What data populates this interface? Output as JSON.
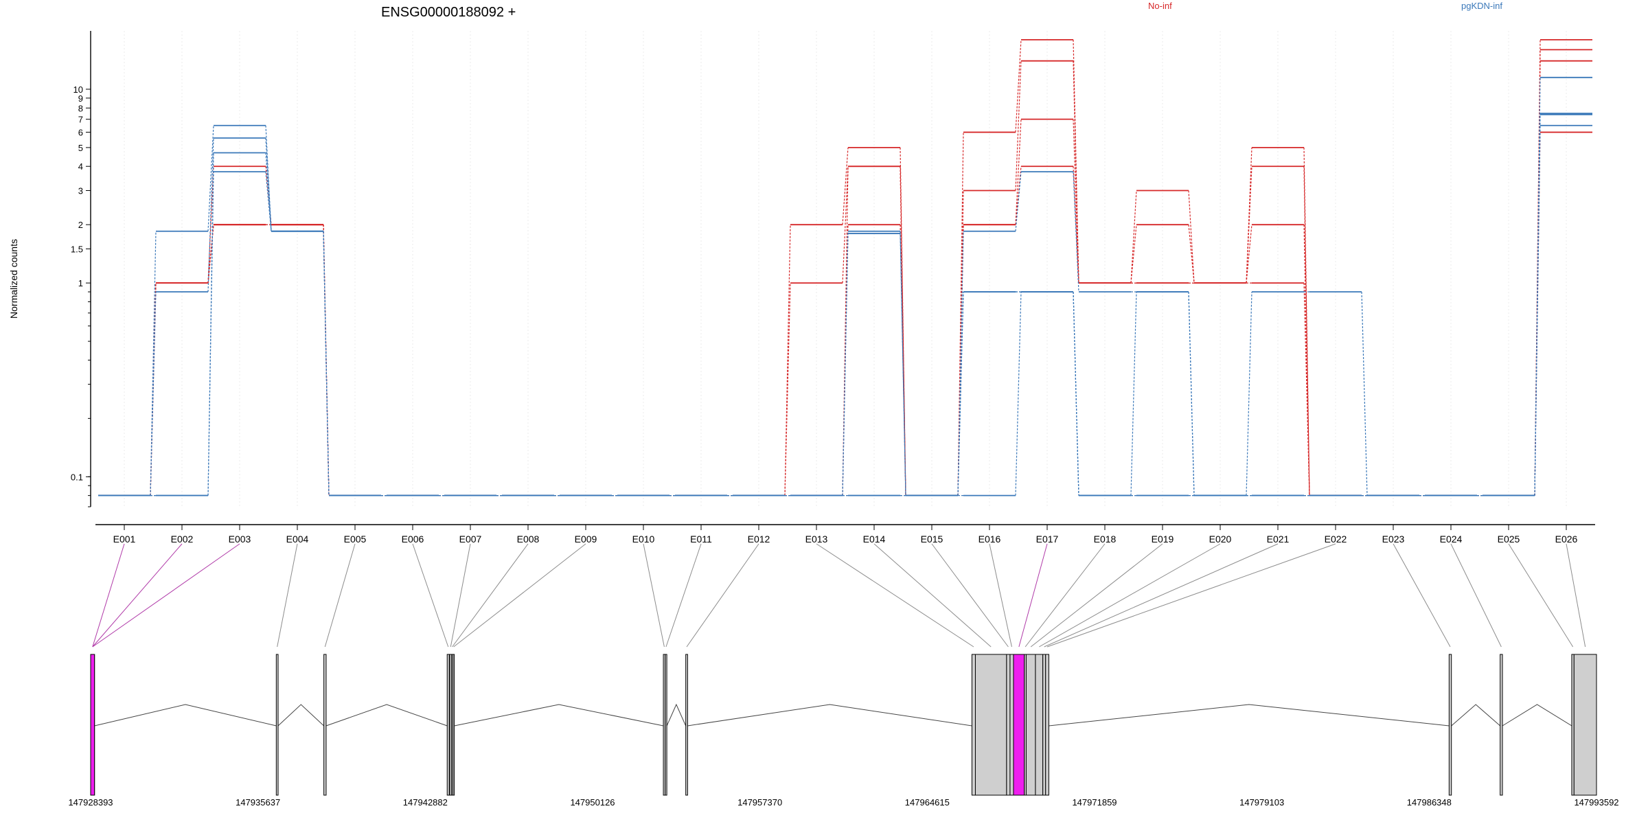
{
  "chart_data": {
    "type": "line",
    "title": "ENSG00000188092 +",
    "ylabel": "Normalized counts",
    "yscale": "log",
    "ylim": [
      0.07,
      20
    ],
    "grid": "vertical-dotted",
    "legend_placement": "top-right",
    "legend": [
      {
        "label": "No-inf",
        "color": "#d62728"
      },
      {
        "label": "pgKDN-inf",
        "color": "#3a78b9"
      }
    ],
    "y_ticks": [
      {
        "value": 0.1,
        "label": "0.1"
      },
      {
        "value": 1,
        "label": "1"
      },
      {
        "value": 1.5,
        "label": "1.5"
      },
      {
        "value": 2,
        "label": "2"
      },
      {
        "value": 3,
        "label": "3"
      },
      {
        "value": 4,
        "label": "4"
      },
      {
        "value": 5,
        "label": "5"
      },
      {
        "value": 6,
        "label": "6"
      },
      {
        "value": 7,
        "label": "7"
      },
      {
        "value": 8,
        "label": "8"
      },
      {
        "value": 9,
        "label": "9"
      },
      {
        "value": 10,
        "label": "10"
      }
    ],
    "categories": [
      "E001",
      "E002",
      "E003",
      "E004",
      "E005",
      "E006",
      "E007",
      "E008",
      "E009",
      "E010",
      "E011",
      "E012",
      "E013",
      "E014",
      "E015",
      "E016",
      "E017",
      "E018",
      "E019",
      "E020",
      "E021",
      "E022",
      "E023",
      "E024",
      "E025",
      "E026"
    ],
    "series": [
      {
        "group": "No-inf",
        "color": "#d62728",
        "values": [
          0.08,
          1,
          2,
          2,
          0.08,
          0.08,
          0.08,
          0.08,
          0.08,
          0.08,
          0.08,
          0.08,
          2,
          5,
          0.08,
          6,
          18,
          1,
          3,
          1,
          5,
          0.08,
          0.08,
          0.08,
          0.08,
          18
        ]
      },
      {
        "group": "No-inf",
        "color": "#d62728",
        "values": [
          0.08,
          1,
          4,
          2,
          0.08,
          0.08,
          0.08,
          0.08,
          0.08,
          0.08,
          0.08,
          0.08,
          1,
          4,
          0.08,
          3,
          14,
          1,
          2,
          1,
          4,
          0.08,
          0.08,
          0.08,
          0.08,
          14
        ]
      },
      {
        "group": "No-inf",
        "color": "#d62728",
        "values": [
          0.08,
          1,
          2,
          2,
          0.08,
          0.08,
          0.08,
          0.08,
          0.08,
          0.08,
          0.08,
          0.08,
          0.08,
          2,
          0.08,
          2,
          7,
          1,
          1,
          1,
          2,
          0.08,
          0.08,
          0.08,
          0.08,
          16
        ]
      },
      {
        "group": "No-inf",
        "color": "#d62728",
        "values": [
          0.08,
          1,
          2,
          2,
          0.08,
          0.08,
          0.08,
          0.08,
          0.08,
          0.08,
          0.08,
          0.08,
          0.08,
          4,
          0.08,
          2,
          4,
          1,
          1,
          1,
          1,
          0.08,
          0.08,
          0.08,
          0.08,
          6
        ]
      },
      {
        "group": "pgKDN-inf",
        "color": "#3a78b9",
        "values": [
          0.08,
          1.85,
          6.5,
          1.85,
          0.08,
          0.08,
          0.08,
          0.08,
          0.08,
          0.08,
          0.08,
          0.08,
          0.08,
          1.85,
          0.08,
          1.85,
          3.75,
          0.9,
          0.9,
          0.08,
          0.9,
          0.9,
          0.08,
          0.08,
          0.08,
          11.5
        ]
      },
      {
        "group": "pgKDN-inf",
        "color": "#3a78b9",
        "values": [
          0.08,
          0.9,
          5.6,
          1.85,
          0.08,
          0.08,
          0.08,
          0.08,
          0.08,
          0.08,
          0.08,
          0.08,
          0.08,
          1.8,
          0.08,
          0.9,
          0.9,
          0.08,
          0.9,
          0.08,
          0.08,
          0.08,
          0.08,
          0.08,
          0.08,
          7.5
        ]
      },
      {
        "group": "pgKDN-inf",
        "color": "#3a78b9",
        "values": [
          0.08,
          0.08,
          4.7,
          1.85,
          0.08,
          0.08,
          0.08,
          0.08,
          0.08,
          0.08,
          0.08,
          0.08,
          0.08,
          0.08,
          0.08,
          0.9,
          0.9,
          0.08,
          0.08,
          0.08,
          0.08,
          0.08,
          0.08,
          0.08,
          0.08,
          7.4
        ]
      },
      {
        "group": "pgKDN-inf",
        "color": "#3a78b9",
        "values": [
          0.08,
          0.08,
          3.75,
          1.85,
          0.08,
          0.08,
          0.08,
          0.08,
          0.08,
          0.08,
          0.08,
          0.08,
          0.08,
          0.08,
          0.08,
          0.08,
          0.9,
          0.08,
          0.08,
          0.08,
          0.08,
          0.08,
          0.08,
          0.08,
          0.08,
          6.5
        ]
      }
    ],
    "genomic_axis": {
      "ticks": [
        "147928393",
        "147935637",
        "147942882",
        "147950126",
        "147957370",
        "147964615",
        "147971859",
        "147979103",
        "147986348",
        "147993592"
      ],
      "range": [
        147928393,
        147993592
      ],
      "exons": [
        {
          "id": "E001",
          "start": 147928393,
          "end": 147928560,
          "highlight": true
        },
        {
          "id": "E002",
          "start": 147928393,
          "end": 147928560,
          "highlight": true
        },
        {
          "id": "E003",
          "start": 147928393,
          "end": 147928560,
          "highlight": true
        },
        {
          "id": "E004",
          "start": 147936430,
          "end": 147936510,
          "highlight": false
        },
        {
          "id": "E005",
          "start": 147938490,
          "end": 147938590,
          "highlight": false
        },
        {
          "id": "E006",
          "start": 147943830,
          "end": 147943920,
          "highlight": false
        },
        {
          "id": "E007",
          "start": 147943940,
          "end": 147944020,
          "highlight": false
        },
        {
          "id": "E008",
          "start": 147944020,
          "end": 147944080,
          "highlight": false
        },
        {
          "id": "E009",
          "start": 147944080,
          "end": 147944130,
          "highlight": false
        },
        {
          "id": "E010",
          "start": 147953190,
          "end": 147953270,
          "highlight": false
        },
        {
          "id": "E011",
          "start": 147953270,
          "end": 147953340,
          "highlight": false
        },
        {
          "id": "E012",
          "start": 147954160,
          "end": 147954240,
          "highlight": false
        },
        {
          "id": "E013",
          "start": 147966550,
          "end": 147966700,
          "highlight": false
        },
        {
          "id": "E014",
          "start": 147966700,
          "end": 147968050,
          "highlight": false
        },
        {
          "id": "E015",
          "start": 147968050,
          "end": 147968200,
          "highlight": false
        },
        {
          "id": "E016",
          "start": 147968200,
          "end": 147968350,
          "highlight": false
        },
        {
          "id": "E017",
          "start": 147968350,
          "end": 147968820,
          "highlight": true
        },
        {
          "id": "E018",
          "start": 147968820,
          "end": 147968900,
          "highlight": false
        },
        {
          "id": "E019",
          "start": 147968900,
          "end": 147969300,
          "highlight": false
        },
        {
          "id": "E020",
          "start": 147969300,
          "end": 147969620,
          "highlight": false
        },
        {
          "id": "E021",
          "start": 147969620,
          "end": 147969740,
          "highlight": false
        },
        {
          "id": "E022",
          "start": 147969740,
          "end": 147969880,
          "highlight": false
        },
        {
          "id": "E023",
          "start": 147987210,
          "end": 147987310,
          "highlight": false
        },
        {
          "id": "E024",
          "start": 147989420,
          "end": 147989520,
          "highlight": false
        },
        {
          "id": "E025",
          "start": 147992520,
          "end": 147992620,
          "highlight": false
        },
        {
          "id": "E026",
          "start": 147992620,
          "end": 147993592,
          "highlight": false
        }
      ]
    }
  },
  "colors": {
    "axis": "#000000",
    "grid": "#ebebeb",
    "connector": "#8c8c8c",
    "connector_highlight": "#b03aa8",
    "exon_fill": "#cfcfcf",
    "exon_highlight": "#ee1fee",
    "intron_line": "#444444"
  }
}
